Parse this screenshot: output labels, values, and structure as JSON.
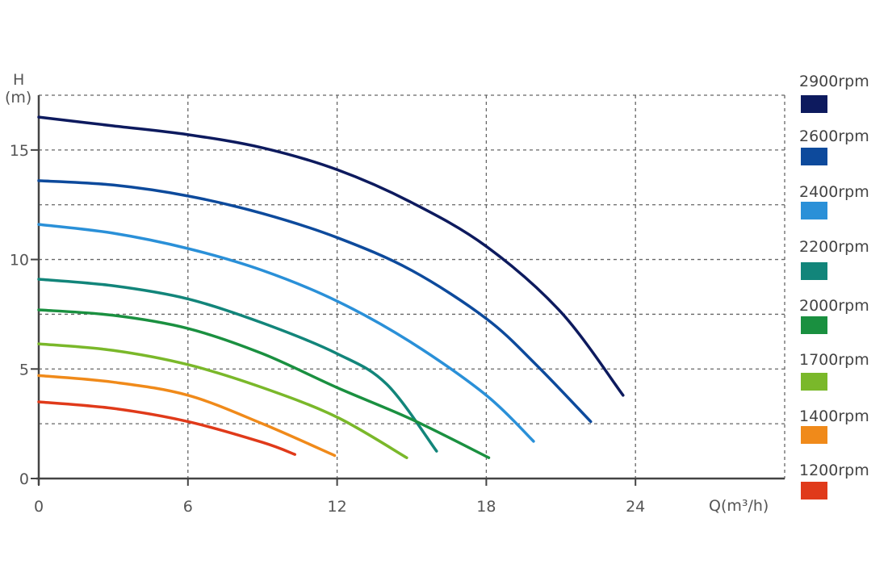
{
  "chart_data": {
    "type": "line",
    "title": "",
    "ylabel_line1": "H",
    "ylabel_line2": "(m)",
    "xlabel": "Q(m³/h)",
    "xlim": [
      0,
      30
    ],
    "ylim": [
      0,
      17.5
    ],
    "grid": true,
    "legend_placement": "right",
    "x_ticks": [
      0,
      6,
      12,
      18,
      24
    ],
    "y_ticks": [
      0,
      5,
      10,
      15
    ],
    "x_grid": [
      6,
      12,
      18,
      24,
      30
    ],
    "y_grid": [
      2.5,
      5,
      7.5,
      10,
      12.5,
      15,
      17.5
    ],
    "series": [
      {
        "name": "2900rpm",
        "color": "#0d1a5e",
        "points": [
          [
            0,
            16.5
          ],
          [
            3,
            16.1
          ],
          [
            6,
            15.7
          ],
          [
            9,
            15.1
          ],
          [
            12,
            14.1
          ],
          [
            15,
            12.6
          ],
          [
            18,
            10.6
          ],
          [
            21,
            7.6
          ],
          [
            23.5,
            3.8
          ]
        ]
      },
      {
        "name": "2600rpm",
        "color": "#0d4a9c",
        "points": [
          [
            0,
            13.6
          ],
          [
            3,
            13.4
          ],
          [
            6,
            12.9
          ],
          [
            9,
            12.1
          ],
          [
            12,
            11.0
          ],
          [
            15,
            9.5
          ],
          [
            18,
            7.3
          ],
          [
            20,
            5.2
          ],
          [
            22.2,
            2.6
          ]
        ]
      },
      {
        "name": "2400rpm",
        "color": "#2a90d8",
        "points": [
          [
            0,
            11.6
          ],
          [
            3,
            11.2
          ],
          [
            6,
            10.5
          ],
          [
            9,
            9.5
          ],
          [
            12,
            8.1
          ],
          [
            15,
            6.2
          ],
          [
            18,
            3.8
          ],
          [
            19.9,
            1.7
          ]
        ]
      },
      {
        "name": "2200rpm",
        "color": "#12857a",
        "points": [
          [
            0,
            9.1
          ],
          [
            3,
            8.8
          ],
          [
            6,
            8.2
          ],
          [
            9,
            7.1
          ],
          [
            12,
            5.7
          ],
          [
            14,
            4.3
          ],
          [
            16,
            1.25
          ]
        ]
      },
      {
        "name": "2000rpm",
        "color": "#1a9040",
        "points": [
          [
            0,
            7.7
          ],
          [
            3,
            7.45
          ],
          [
            6,
            6.85
          ],
          [
            9,
            5.7
          ],
          [
            12,
            4.15
          ],
          [
            15,
            2.7
          ],
          [
            18.1,
            0.95
          ]
        ]
      },
      {
        "name": "1700rpm",
        "color": "#7ab82a",
        "points": [
          [
            0,
            6.15
          ],
          [
            3,
            5.85
          ],
          [
            6,
            5.2
          ],
          [
            9,
            4.15
          ],
          [
            12,
            2.8
          ],
          [
            14.8,
            0.95
          ]
        ]
      },
      {
        "name": "1400rpm",
        "color": "#f08a1a",
        "points": [
          [
            0,
            4.7
          ],
          [
            3,
            4.4
          ],
          [
            6,
            3.8
          ],
          [
            9,
            2.5
          ],
          [
            11.9,
            1.05
          ]
        ]
      },
      {
        "name": "1200rpm",
        "color": "#e03a1a",
        "points": [
          [
            0,
            3.5
          ],
          [
            3,
            3.2
          ],
          [
            6,
            2.6
          ],
          [
            9,
            1.65
          ],
          [
            10.3,
            1.1
          ]
        ]
      }
    ]
  }
}
